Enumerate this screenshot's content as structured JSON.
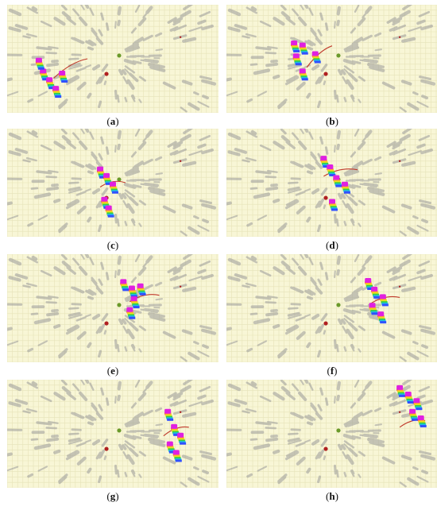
{
  "figure": {
    "panels": [
      {
        "id": "a",
        "label_open": "(",
        "letter": "a",
        "label_close": ")"
      },
      {
        "id": "b",
        "label_open": "(",
        "letter": "b",
        "label_close": ")"
      },
      {
        "id": "c",
        "label_open": "(",
        "letter": "c",
        "label_close": ")"
      },
      {
        "id": "d",
        "label_open": "(",
        "letter": "d",
        "label_close": ")"
      },
      {
        "id": "e",
        "label_open": "(",
        "letter": "e",
        "label_close": ")"
      },
      {
        "id": "f",
        "label_open": "(",
        "letter": "f",
        "label_close": ")"
      },
      {
        "id": "g",
        "label_open": "(",
        "letter": "g",
        "label_close": ")"
      },
      {
        "id": "h",
        "label_open": "(",
        "letter": "h",
        "label_close": ")"
      }
    ],
    "colors": {
      "background": "#f8f6d6",
      "grid": "#e6e3b8",
      "obstacle": "#9a9a9a",
      "robot_top": "#e020e0",
      "trajectory": "#c0392b",
      "goal_green": "#6a9a2a",
      "goal_red": "#b02020"
    }
  }
}
